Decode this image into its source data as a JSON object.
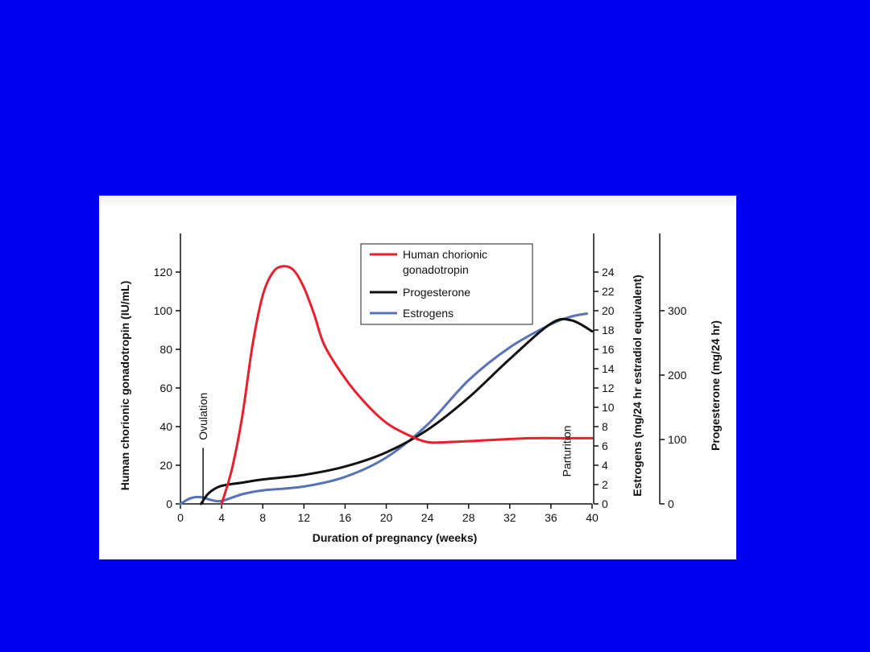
{
  "slide": {
    "background_color": "#0000f0",
    "panel_color": "#ffffff"
  },
  "chart_data": {
    "type": "line",
    "title": "",
    "xlabel": "Duration of pregnancy (weeks)",
    "xlim": [
      0,
      40
    ],
    "x_ticks": [
      0,
      4,
      8,
      12,
      16,
      20,
      24,
      28,
      32,
      36,
      40
    ],
    "axes": {
      "left": {
        "label": "Human chorionic gonadotropin (IU/mL)",
        "ylim": [
          0,
          140
        ],
        "ticks": [
          0,
          20,
          40,
          60,
          80,
          100,
          120
        ]
      },
      "right_estrogens": {
        "label": "Estrogens (mg/24 hr estradiol equivalent)",
        "ylim": [
          0,
          28
        ],
        "ticks": [
          0,
          2,
          4,
          6,
          8,
          10,
          12,
          14,
          16,
          18,
          20,
          22,
          24
        ]
      },
      "right_progesterone": {
        "label": "Progesterone (mg/24 hr)",
        "ylim": [
          0,
          420
        ],
        "ticks": [
          0,
          100,
          200,
          300
        ]
      }
    },
    "grid": false,
    "legend_position": "top-center",
    "series": [
      {
        "name": "Human chorionic gonadotropin",
        "legend_lines": [
          "Human chorionic",
          "gonadotropin"
        ],
        "axis": "left",
        "color": "#e8202e",
        "x": [
          4,
          5,
          6,
          7,
          8,
          9,
          10,
          11,
          12,
          13,
          14,
          16,
          18,
          20,
          22,
          24,
          26,
          30,
          34,
          38,
          40
        ],
        "y": [
          0,
          18,
          45,
          82,
          108,
          120,
          123,
          121,
          112,
          98,
          82,
          65,
          52,
          42,
          36,
          32,
          32,
          33,
          34,
          34,
          34
        ]
      },
      {
        "name": "Progesterone",
        "axis": "right_progesterone",
        "color": "#111111",
        "x": [
          2,
          2.5,
          3,
          4,
          6,
          8,
          12,
          16,
          20,
          24,
          28,
          32,
          36,
          38,
          40
        ],
        "y": [
          0,
          12,
          20,
          28,
          33,
          38,
          45,
          58,
          80,
          115,
          165,
          225,
          280,
          285,
          268
        ]
      },
      {
        "name": "Estrogens",
        "axis": "right_estrogens",
        "color": "#5872b8",
        "x": [
          0,
          1,
          2,
          3,
          4,
          6,
          8,
          12,
          16,
          20,
          24,
          28,
          32,
          36,
          38,
          39.5
        ],
        "y": [
          0,
          0.6,
          0.7,
          0.4,
          0.3,
          1,
          1.4,
          1.8,
          2.8,
          4.8,
          8.2,
          12.8,
          16.2,
          18.6,
          19.4,
          19.7
        ]
      }
    ],
    "annotations": [
      {
        "text": "Ovulation",
        "x": 2.2
      },
      {
        "text": "Parturition",
        "x": 38.8
      }
    ]
  }
}
